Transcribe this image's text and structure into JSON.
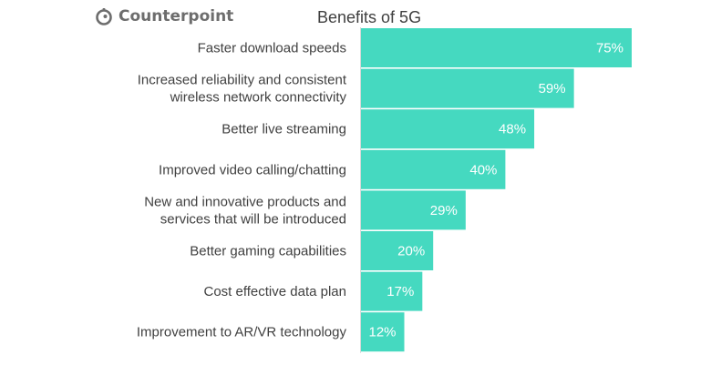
{
  "logo_text": "Counterpoint",
  "colors": {
    "bar": "#45D9C0",
    "text": "#404040"
  },
  "chart_data": {
    "type": "bar",
    "orientation": "horizontal",
    "title": "Benefits of 5G",
    "categories": [
      [
        "Faster download speeds"
      ],
      [
        "Increased reliability and consistent",
        "wireless network connectivity"
      ],
      [
        "Better live streaming"
      ],
      [
        "Improved video calling/chatting"
      ],
      [
        "New and innovative products and",
        "services that will be introduced"
      ],
      [
        "Better gaming capabilities"
      ],
      [
        "Cost effective data plan"
      ],
      [
        "Improvement to AR/VR technology"
      ]
    ],
    "values": [
      75,
      59,
      48,
      40,
      29,
      20,
      17,
      12
    ],
    "data_labels": [
      "75%",
      "59%",
      "48%",
      "40%",
      "29%",
      "20%",
      "17%",
      "12%"
    ],
    "xlim": [
      0,
      75
    ],
    "grid": false,
    "legend": "none"
  }
}
